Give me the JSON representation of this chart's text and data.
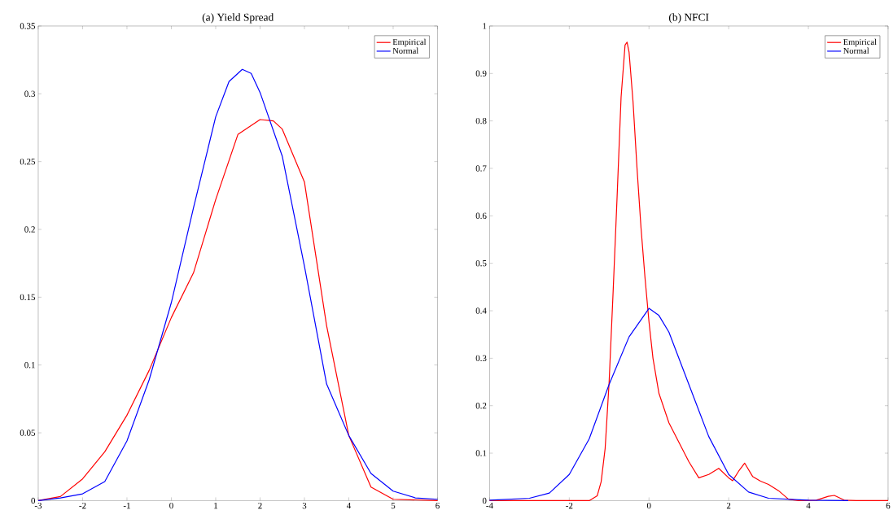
{
  "chart_data": [
    {
      "type": "line",
      "title": "(a) Yield Spread",
      "xlim": [
        -3,
        6
      ],
      "ylim": [
        0,
        0.35
      ],
      "xticks": [
        -3,
        -2,
        -1,
        0,
        1,
        2,
        3,
        4,
        5,
        6
      ],
      "yticks": [
        0,
        0.05,
        0.1,
        0.15,
        0.2,
        0.25,
        0.3,
        0.35
      ],
      "legend": "top right",
      "series": [
        {
          "name": "Empirical",
          "color": "#ff0000",
          "x": [
            -3,
            -2.5,
            -2,
            -1.5,
            -1,
            -0.5,
            0,
            0.5,
            1,
            1.5,
            2,
            2.3,
            2.5,
            3,
            3.5,
            4,
            4.5,
            5,
            6
          ],
          "values": [
            0,
            0.003,
            0.016,
            0.036,
            0.063,
            0.096,
            0.135,
            0.168,
            0.222,
            0.27,
            0.281,
            0.28,
            0.274,
            0.235,
            0.129,
            0.048,
            0.01,
            0.001,
            0
          ]
        },
        {
          "name": "Normal",
          "color": "#0000ff",
          "x": [
            -3,
            -2.5,
            -2,
            -1.5,
            -1,
            -0.5,
            0,
            0.5,
            1,
            1.3,
            1.6,
            1.8,
            2,
            2.5,
            3,
            3.5,
            4,
            4.5,
            5,
            5.5,
            6
          ],
          "values": [
            0,
            0.002,
            0.005,
            0.014,
            0.044,
            0.089,
            0.146,
            0.216,
            0.283,
            0.309,
            0.318,
            0.315,
            0.301,
            0.254,
            0.173,
            0.086,
            0.048,
            0.02,
            0.007,
            0.002,
            0.001
          ]
        }
      ]
    },
    {
      "type": "line",
      "title": "(b) NFCI",
      "xlim": [
        -4,
        6
      ],
      "ylim": [
        0,
        1
      ],
      "xticks": [
        -4,
        -2,
        0,
        2,
        4,
        6
      ],
      "yticks": [
        0,
        0.1,
        0.2,
        0.3,
        0.4,
        0.5,
        0.6,
        0.7,
        0.8,
        0.9,
        1
      ],
      "legend": "top right",
      "series": [
        {
          "name": "Empirical",
          "color": "#ff0000",
          "x": [
            -4,
            -1.5,
            -1.3,
            -1.2,
            -1.1,
            -1,
            -0.9,
            -0.8,
            -0.7,
            -0.6,
            -0.55,
            -0.5,
            -0.4,
            -0.3,
            -0.2,
            -0.1,
            0,
            0.1,
            0.25,
            0.5,
            0.75,
            1,
            1.25,
            1.5,
            1.75,
            2,
            2.1,
            2.25,
            2.4,
            2.6,
            2.8,
            3,
            3.25,
            3.5,
            3.75,
            4.2,
            4.5,
            4.65,
            4.9,
            5.2,
            6
          ],
          "values": [
            0,
            0,
            0.01,
            0.04,
            0.11,
            0.25,
            0.44,
            0.64,
            0.85,
            0.96,
            0.966,
            0.945,
            0.84,
            0.7,
            0.575,
            0.47,
            0.377,
            0.3,
            0.226,
            0.164,
            0.123,
            0.082,
            0.048,
            0.055,
            0.068,
            0.048,
            0.042,
            0.062,
            0.079,
            0.051,
            0.041,
            0.034,
            0.021,
            0.003,
            0,
            0.001,
            0.009,
            0.011,
            0.001,
            0,
            0
          ]
        },
        {
          "name": "Normal",
          "color": "#0000ff",
          "x": [
            -4,
            -3,
            -2.5,
            -2,
            -1.5,
            -1,
            -0.5,
            0,
            0.25,
            0.5,
            1,
            1.5,
            2,
            2.5,
            3,
            4,
            5
          ],
          "values": [
            0.001,
            0.005,
            0.016,
            0.055,
            0.13,
            0.245,
            0.345,
            0.405,
            0.39,
            0.355,
            0.245,
            0.135,
            0.055,
            0.018,
            0.005,
            0.001,
            0
          ]
        }
      ]
    }
  ]
}
